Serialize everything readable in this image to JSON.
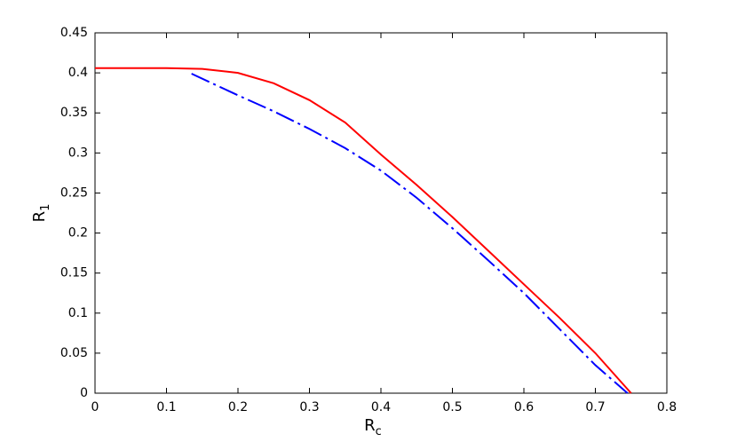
{
  "chart_data": {
    "type": "line",
    "xlabel": {
      "base": "R",
      "sub": "c"
    },
    "ylabel": {
      "base": "R",
      "sub": "1"
    },
    "xlim": [
      0,
      0.8
    ],
    "xticks": [
      0,
      0.1,
      0.2,
      0.3,
      0.4,
      0.5,
      0.6,
      0.7,
      0.8
    ],
    "ylim": [
      0,
      0.45
    ],
    "yticks": [
      0,
      0.05,
      0.1,
      0.15,
      0.2,
      0.25,
      0.3,
      0.35,
      0.4,
      0.45
    ],
    "series": [
      {
        "color": "#ff0000",
        "dash": "solid",
        "x": [
          0,
          0.05,
          0.1,
          0.15,
          0.2,
          0.25,
          0.3,
          0.35,
          0.4,
          0.45,
          0.5,
          0.55,
          0.6,
          0.65,
          0.7,
          0.75
        ],
        "values": [
          0.406,
          0.406,
          0.406,
          0.405,
          0.4,
          0.387,
          0.366,
          0.338,
          0.298,
          0.26,
          0.22,
          0.178,
          0.136,
          0.094,
          0.05,
          0
        ]
      },
      {
        "color": "#0000ff",
        "dash": "dashdot",
        "x": [
          0.135,
          0.2,
          0.25,
          0.3,
          0.35,
          0.4,
          0.45,
          0.5,
          0.55,
          0.6,
          0.65,
          0.7,
          0.745
        ],
        "values": [
          0.399,
          0.372,
          0.352,
          0.33,
          0.306,
          0.278,
          0.244,
          0.206,
          0.166,
          0.125,
          0.08,
          0.035,
          0
        ]
      }
    ]
  }
}
